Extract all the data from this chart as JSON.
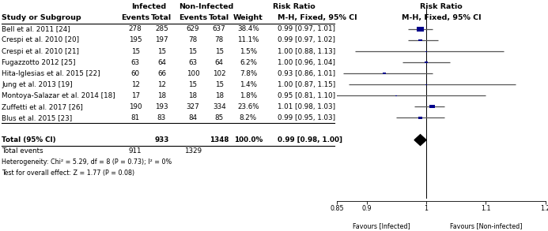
{
  "studies": [
    {
      "name": "Bell et al. 2011 [24]",
      "inf_events": 278,
      "inf_total": 285,
      "noninf_events": 629,
      "noninf_total": 637,
      "weight": "38.4%",
      "weight_val": 38.4,
      "rr": 0.99,
      "ci_lo": 0.97,
      "ci_hi": 1.01,
      "ci_text": "0.99 [0.97, 1.01]"
    },
    {
      "name": "Crespi et al. 2010 [20]",
      "inf_events": 195,
      "inf_total": 197,
      "noninf_events": 78,
      "noninf_total": 78,
      "weight": "11.1%",
      "weight_val": 11.1,
      "rr": 0.99,
      "ci_lo": 0.97,
      "ci_hi": 1.02,
      "ci_text": "0.99 [0.97, 1.02]"
    },
    {
      "name": "Crespi et al. 2010 [21]",
      "inf_events": 15,
      "inf_total": 15,
      "noninf_events": 15,
      "noninf_total": 15,
      "weight": "1.5%",
      "weight_val": 1.5,
      "rr": 1.0,
      "ci_lo": 0.88,
      "ci_hi": 1.13,
      "ci_text": "1.00 [0.88, 1.13]"
    },
    {
      "name": "Fugazzotto 2012 [25]",
      "inf_events": 63,
      "inf_total": 64,
      "noninf_events": 63,
      "noninf_total": 64,
      "weight": "6.2%",
      "weight_val": 6.2,
      "rr": 1.0,
      "ci_lo": 0.96,
      "ci_hi": 1.04,
      "ci_text": "1.00 [0.96, 1.04]"
    },
    {
      "name": "Hita-Iglesias et al. 2015 [22]",
      "inf_events": 60,
      "inf_total": 66,
      "noninf_events": 100,
      "noninf_total": 102,
      "weight": "7.8%",
      "weight_val": 7.8,
      "rr": 0.93,
      "ci_lo": 0.86,
      "ci_hi": 1.01,
      "ci_text": "0.93 [0.86, 1.01]"
    },
    {
      "name": "Jung et al. 2013 [19]",
      "inf_events": 12,
      "inf_total": 12,
      "noninf_events": 15,
      "noninf_total": 15,
      "weight": "1.4%",
      "weight_val": 1.4,
      "rr": 1.0,
      "ci_lo": 0.87,
      "ci_hi": 1.15,
      "ci_text": "1.00 [0.87, 1.15]"
    },
    {
      "name": "Montoya-Salazar et al. 2014 [18]",
      "inf_events": 17,
      "inf_total": 18,
      "noninf_events": 18,
      "noninf_total": 18,
      "weight": "1.8%",
      "weight_val": 1.8,
      "rr": 0.95,
      "ci_lo": 0.81,
      "ci_hi": 1.1,
      "ci_text": "0.95 [0.81, 1.10]"
    },
    {
      "name": "Zuffetti et al. 2017 [26]",
      "inf_events": 190,
      "inf_total": 193,
      "noninf_events": 327,
      "noninf_total": 334,
      "weight": "23.6%",
      "weight_val": 23.6,
      "rr": 1.01,
      "ci_lo": 0.98,
      "ci_hi": 1.03,
      "ci_text": "1.01 [0.98, 1.03]"
    },
    {
      "name": "Blus et al. 2015 [23]",
      "inf_events": 81,
      "inf_total": 83,
      "noninf_events": 84,
      "noninf_total": 85,
      "weight": "8.2%",
      "weight_val": 8.2,
      "rr": 0.99,
      "ci_lo": 0.95,
      "ci_hi": 1.03,
      "ci_text": "0.99 [0.95, 1.03]"
    }
  ],
  "total": {
    "inf_total": 933,
    "noninf_total": 1348,
    "weight": "100.0%",
    "rr": 0.99,
    "ci_lo": 0.98,
    "ci_hi": 1.0,
    "ci_text": "0.99 [0.98, 1.00]",
    "inf_events": 911,
    "noninf_events": 1329
  },
  "heterogeneity_text": "Heterogeneity: Chi² = 5.29, df = 8 (P = 0.73); I² = 0%",
  "overall_effect_text": "Test for overall effect: Z = 1.77 (P = 0.08)",
  "xmin": 0.85,
  "xmax": 1.2,
  "xticks": [
    0.85,
    0.9,
    1.0,
    1.1,
    1.2
  ],
  "xlabel_left": "Favours [Infected]",
  "xlabel_right": "Favours [Non-infected]",
  "square_color": "#00008B",
  "line_color": "#555555",
  "diamond_color": "black",
  "bg_color": "#ffffff",
  "fs_header": 6.8,
  "fs_body": 6.3,
  "fs_tick": 5.8
}
